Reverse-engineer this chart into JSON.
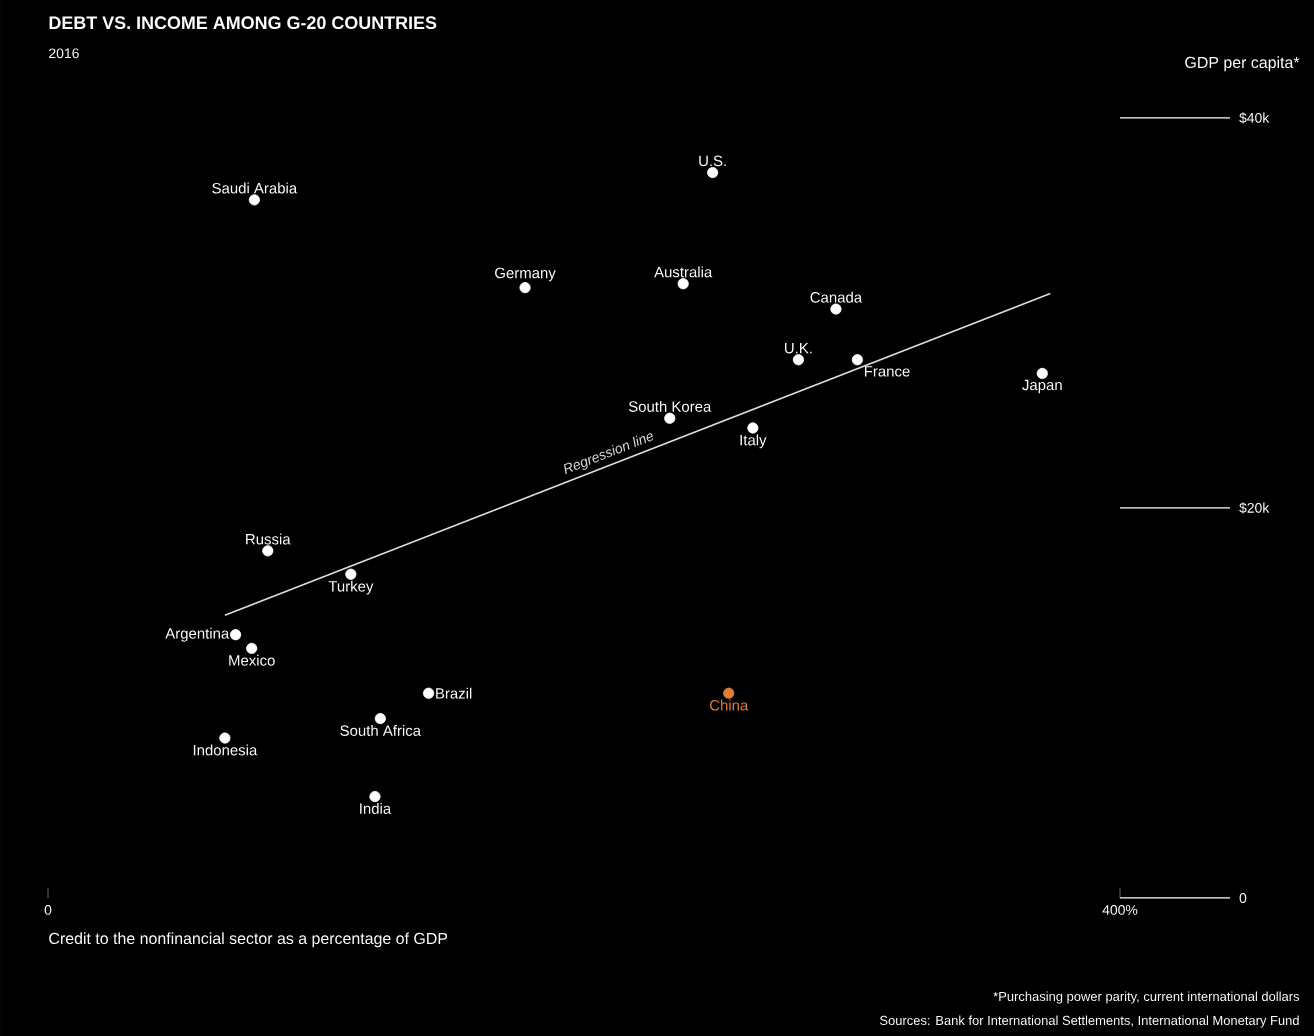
{
  "chart_data": {
    "type": "scatter",
    "title": "DEBT VS. INCOME AMONG G-20 COUNTRIES",
    "subtitle": "2016",
    "xlabel": "Credit to the nonfinancial sector as a percentage of GDP",
    "ylabel": "GDP per capita*",
    "annotations": [
      "*Purchasing power parity, current international dollars",
      "Sources: Bank for International Settlements, International Monetary Fund"
    ],
    "xlim": [
      0,
      400
    ],
    "xticks": [
      {
        "value": 0,
        "label": "0"
      },
      {
        "value": 400,
        "label": "400%"
      }
    ],
    "ylim": [
      0,
      40000
    ],
    "yticks": [
      {
        "value": 0,
        "label": "0"
      },
      {
        "value": 20000,
        "label": "$20k"
      },
      {
        "value": 40000,
        "label": "$40k"
      }
    ],
    "series": [
      {
        "name": "Saudi Arabia",
        "color": "#ffffff",
        "x": [
          77
        ],
        "values": [
          35800
        ]
      },
      {
        "name": "U.S.",
        "color": "#ffffff",
        "x": [
          248
        ],
        "values": [
          37200
        ]
      },
      {
        "name": "Germany",
        "color": "#ffffff",
        "x": [
          178
        ],
        "values": [
          31300
        ]
      },
      {
        "name": "Australia",
        "color": "#ffffff",
        "x": [
          237
        ],
        "values": [
          31500
        ]
      },
      {
        "name": "Canada",
        "color": "#ffffff",
        "x": [
          294
        ],
        "values": [
          30200
        ]
      },
      {
        "name": "U.K.",
        "color": "#ffffff",
        "x": [
          280
        ],
        "values": [
          27600
        ]
      },
      {
        "name": "France",
        "color": "#ffffff",
        "x": [
          302
        ],
        "values": [
          27600
        ]
      },
      {
        "name": "Japan",
        "color": "#ffffff",
        "x": [
          371
        ],
        "values": [
          26900
        ]
      },
      {
        "name": "South Korea",
        "color": "#ffffff",
        "x": [
          232
        ],
        "values": [
          24600
        ]
      },
      {
        "name": "Italy",
        "color": "#ffffff",
        "x": [
          263
        ],
        "values": [
          24100
        ]
      },
      {
        "name": "Russia",
        "color": "#ffffff",
        "x": [
          82
        ],
        "values": [
          17800
        ]
      },
      {
        "name": "Turkey",
        "color": "#ffffff",
        "x": [
          113
        ],
        "values": [
          16600
        ]
      },
      {
        "name": "Argentina",
        "color": "#ffffff",
        "x": [
          70
        ],
        "values": [
          13500
        ]
      },
      {
        "name": "Mexico",
        "color": "#ffffff",
        "x": [
          76
        ],
        "values": [
          12800
        ]
      },
      {
        "name": "Brazil",
        "color": "#ffffff",
        "x": [
          142
        ],
        "values": [
          10500
        ]
      },
      {
        "name": "South Africa",
        "color": "#ffffff",
        "x": [
          124
        ],
        "values": [
          9200
        ]
      },
      {
        "name": "Indonesia",
        "color": "#ffffff",
        "x": [
          66
        ],
        "values": [
          8200
        ]
      },
      {
        "name": "India",
        "color": "#ffffff",
        "x": [
          122
        ],
        "values": [
          5200
        ]
      },
      {
        "name": "China",
        "color": "#e07b39",
        "x": [
          254
        ],
        "values": [
          10500
        ]
      },
      {
        "name": "Regression line",
        "type": "line",
        "color": "#dddddd",
        "x": [
          66,
          374
        ],
        "values": [
          14500,
          31000
        ]
      }
    ]
  }
}
